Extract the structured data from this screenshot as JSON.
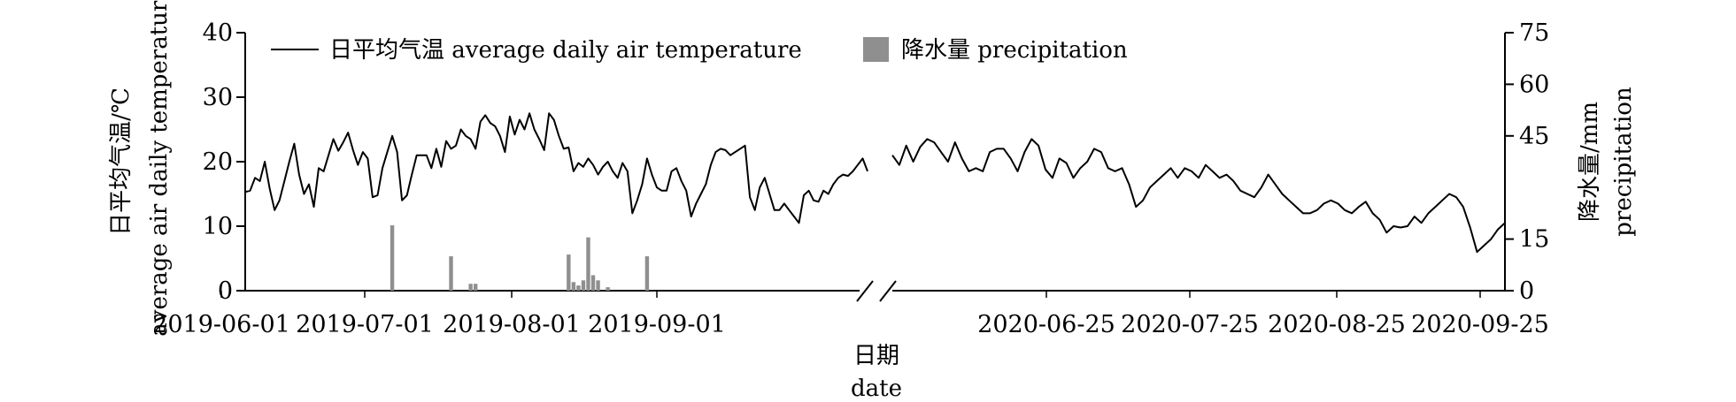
{
  "chart_data": {
    "type": "bar+line",
    "legend": {
      "line_label": "日平均气温 average daily air temperature",
      "bar_label": "降水量 precipitation",
      "placement": "top-left"
    },
    "axes": {
      "y_left": {
        "label_cn": "日平均气温/℃",
        "label_en": "average air daily temperature",
        "ylim": [
          0,
          40
        ],
        "ticks": [
          "0",
          "10",
          "20",
          "30",
          "40"
        ]
      },
      "y_right": {
        "label_cn": "降水量/mm",
        "label_en": "precipitation",
        "ylim": [
          0,
          75
        ],
        "ticks": [
          "0",
          "15",
          "45",
          "60",
          "75"
        ]
      },
      "x": {
        "label_cn": "日期",
        "label_en": "date",
        "broken": true,
        "ticks": [
          "2019-06-01",
          "2019-07-01",
          "2019-08-01",
          "2019-09-01",
          "2020-06-25",
          "2020-07-25",
          "2020-08-25",
          "2020-09-25"
        ]
      }
    },
    "segments": [
      {
        "start": "2019-06-01",
        "temperature": [
          15.3,
          15.5,
          17.5,
          17,
          20,
          15.8,
          12.5,
          14,
          17,
          20,
          22.8,
          18,
          15,
          16.5,
          13,
          19,
          18.5,
          21,
          23.5,
          21.7,
          23,
          24.5,
          21.8,
          19.5,
          21.5,
          20.5,
          14.5,
          14.8,
          19,
          21.5,
          24,
          21.5,
          14,
          14.8,
          18,
          21,
          21,
          21,
          19,
          22,
          19.2,
          23.2,
          22,
          22.5,
          25,
          24,
          23.5,
          22,
          26.2,
          27.2,
          26,
          25.5,
          24,
          21.5,
          27,
          24.2,
          26.5,
          25,
          27.5,
          25,
          23.5,
          21.8,
          27.5,
          26.5,
          24,
          22,
          22.2,
          18.5,
          19.8,
          19.2,
          20.5,
          19.5,
          18,
          19.2,
          20,
          18.5,
          17.5,
          19.8,
          18.5,
          12,
          14,
          16.5,
          20.5,
          18,
          16,
          15.5,
          15.5,
          18.5,
          19,
          17,
          15.5,
          11.5,
          13.5,
          15,
          16.5,
          19.5,
          21.5,
          22,
          21.8,
          21,
          21.5,
          22,
          22.5,
          14.5,
          12.5,
          16,
          17.5,
          15,
          12.5,
          12.5,
          13.5,
          12.5,
          11.5,
          10.5,
          14.8,
          15.5,
          14,
          13.8,
          15.5,
          15,
          16.5,
          17.5,
          18,
          17.8,
          18.5,
          19.5,
          20.5,
          18.5
        ],
        "precipitation": [
          0,
          0,
          0,
          0,
          0,
          0,
          0,
          0,
          0,
          0,
          0,
          0,
          0,
          0,
          0,
          0,
          0,
          0,
          0,
          0,
          0,
          0,
          0,
          0,
          0,
          0,
          0,
          0,
          0,
          0,
          19,
          0,
          0,
          0,
          0,
          0,
          0,
          0,
          0,
          0,
          0,
          0,
          10,
          0,
          0,
          0,
          2,
          2,
          0,
          0,
          0,
          0,
          0,
          0,
          0,
          0,
          0,
          0,
          0,
          0,
          0,
          0,
          0,
          0,
          0,
          0,
          10.5,
          2.5,
          1.5,
          3,
          15.5,
          4.5,
          3,
          0,
          1,
          0,
          0,
          0,
          0,
          0,
          0,
          0,
          10,
          0,
          0,
          0,
          0,
          0,
          0,
          0,
          0,
          0,
          0,
          0,
          0,
          0,
          0,
          0,
          0,
          0,
          0,
          0,
          0,
          0,
          0,
          0,
          0,
          0,
          0,
          0,
          0,
          0,
          0,
          0,
          0,
          0,
          0,
          0,
          0,
          0,
          0,
          0,
          0,
          0,
          0,
          0,
          0,
          0,
          0,
          0,
          0,
          0,
          0,
          0,
          0,
          0,
          0,
          0,
          0,
          0,
          0,
          0,
          0
        ]
      },
      {
        "start": "2020-06-25",
        "temperature": [
          21,
          19.5,
          22.5,
          20,
          22.3,
          23.5,
          23,
          21.5,
          20,
          23,
          20.5,
          18.5,
          19,
          18.5,
          21.5,
          22,
          22,
          20.5,
          18.5,
          21.5,
          23.5,
          22.5,
          18.8,
          17.5,
          20.5,
          19.8,
          17.5,
          19,
          20,
          22,
          21.5,
          19,
          18.5,
          19,
          16.5,
          13,
          14,
          16,
          17,
          18,
          19,
          17.5,
          19,
          18.5,
          17.5,
          19.5,
          18.5,
          17.5,
          18,
          17,
          15.5,
          15,
          14.5,
          16,
          18,
          16.5,
          15,
          14,
          13,
          12,
          12,
          12.5,
          13.5,
          14,
          13.5,
          12.5,
          12,
          13,
          13.8,
          12,
          11,
          9,
          10,
          9.8,
          10,
          11.5,
          10.5,
          12,
          13,
          14,
          15,
          14.5,
          13,
          9.8,
          6,
          7,
          8,
          9.5,
          10.5
        ],
        "precipitation": [
          0,
          0,
          0,
          0,
          0,
          0,
          0,
          0,
          0,
          0,
          0,
          0,
          0,
          0,
          0,
          0,
          0,
          0,
          0,
          0,
          0,
          0,
          0,
          0,
          0,
          0,
          0,
          0,
          0,
          0,
          0,
          0,
          0,
          0,
          0,
          0,
          0,
          0,
          0,
          0,
          0,
          0,
          0,
          0,
          0,
          0,
          0,
          0,
          0,
          0,
          0,
          0,
          0,
          0,
          0,
          0,
          0,
          0,
          0,
          0,
          0,
          0,
          0,
          0,
          0,
          0,
          0,
          0,
          0,
          0,
          0,
          0,
          0,
          0,
          0,
          0,
          0,
          0,
          0,
          0,
          0,
          0,
          0,
          0,
          0,
          0,
          0,
          0,
          0,
          0,
          0,
          0,
          0
        ]
      }
    ]
  }
}
